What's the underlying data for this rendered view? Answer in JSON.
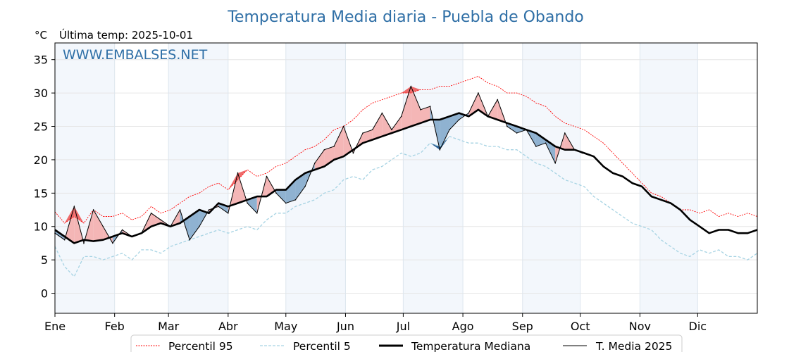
{
  "chart_data": {
    "type": "line",
    "title": "Temperatura Media diaria - Puebla de Obando",
    "unit_label": "°C",
    "subtitle": "Última temp: 2025-10-01",
    "watermark": "WWW.EMBALSES.NET",
    "ylim": [
      -3,
      37.5
    ],
    "yticks": [
      0,
      5,
      10,
      15,
      20,
      25,
      30,
      35
    ],
    "xlim_day": [
      0,
      365
    ],
    "month_ticks": [
      {
        "label": "Ene",
        "day": 0
      },
      {
        "label": "Feb",
        "day": 31
      },
      {
        "label": "Mar",
        "day": 59
      },
      {
        "label": "Abr",
        "day": 90
      },
      {
        "label": "May",
        "day": 120
      },
      {
        "label": "Jun",
        "day": 151
      },
      {
        "label": "Jul",
        "day": 181
      },
      {
        "label": "Ago",
        "day": 212
      },
      {
        "label": "Sep",
        "day": 243
      },
      {
        "label": "Oct",
        "day": 273
      },
      {
        "label": "Nov",
        "day": 304
      },
      {
        "label": "Dic",
        "day": 334
      }
    ],
    "grid": true,
    "legend_position": "bottom-center",
    "legend": [
      {
        "label": "Percentil 95",
        "color": "#ff0000",
        "style": "dotted"
      },
      {
        "label": "Percentil 5",
        "color": "#a6d3e3",
        "style": "dashed"
      },
      {
        "label": "Temperatura Mediana",
        "color": "#000000",
        "style": "thick"
      },
      {
        "label": "T. Media 2025",
        "color": "#000000",
        "style": "thin"
      }
    ],
    "colors": {
      "above_fill": "#f4b6b6",
      "above_p95_fill": "#ee6a6a",
      "below_fill": "#8fb2d1",
      "below_p5_fill": "#2a5e92",
      "band_shade": "#f3f7fc"
    },
    "x_days": [
      0,
      5,
      10,
      15,
      20,
      25,
      30,
      35,
      40,
      45,
      50,
      55,
      60,
      65,
      70,
      75,
      80,
      85,
      90,
      95,
      100,
      105,
      110,
      115,
      120,
      125,
      130,
      135,
      140,
      145,
      150,
      155,
      160,
      165,
      170,
      175,
      180,
      185,
      190,
      195,
      200,
      205,
      210,
      215,
      220,
      225,
      230,
      235,
      240,
      245,
      250,
      255,
      260,
      265,
      270,
      275,
      280,
      285,
      290,
      295,
      300,
      305,
      310,
      315,
      320,
      325,
      330,
      335,
      340,
      345,
      350,
      355,
      360,
      365
    ],
    "series": [
      {
        "name": "Percentil 95",
        "values": [
          12.2,
          10.5,
          11.5,
          10.5,
          12.5,
          11.5,
          11.5,
          12.0,
          11.0,
          11.5,
          13.0,
          12.0,
          12.5,
          13.5,
          14.5,
          15.0,
          16.0,
          16.5,
          15.5,
          17.0,
          18.5,
          17.5,
          18.0,
          19.0,
          19.5,
          20.5,
          21.5,
          22.0,
          23.0,
          24.5,
          25.0,
          26.0,
          27.5,
          28.5,
          29.0,
          29.5,
          30.0,
          30.0,
          30.5,
          30.5,
          31.0,
          31.0,
          31.5,
          32.0,
          32.5,
          31.5,
          31.0,
          30.0,
          30.0,
          29.5,
          28.5,
          28.0,
          26.5,
          25.5,
          25.0,
          24.5,
          23.5,
          22.5,
          21.0,
          19.5,
          18.0,
          16.5,
          15.0,
          14.5,
          13.5,
          12.5,
          12.5,
          12.0,
          12.5,
          11.5,
          12.0,
          11.5,
          12.0,
          11.5
        ]
      },
      {
        "name": "Percentil 5",
        "values": [
          7.0,
          4.0,
          2.5,
          5.5,
          5.5,
          5.0,
          5.5,
          6.0,
          5.0,
          6.5,
          6.5,
          6.0,
          7.0,
          7.5,
          8.0,
          8.5,
          9.0,
          9.5,
          9.0,
          9.5,
          10.0,
          9.5,
          11.0,
          12.0,
          12.0,
          13.0,
          13.5,
          14.0,
          15.0,
          15.5,
          17.0,
          17.5,
          17.0,
          18.5,
          19.0,
          20.0,
          21.0,
          20.5,
          21.0,
          22.5,
          22.0,
          23.5,
          23.0,
          22.5,
          22.5,
          22.0,
          22.0,
          21.5,
          21.5,
          20.5,
          19.5,
          19.0,
          18.0,
          17.0,
          16.5,
          16.0,
          14.5,
          13.5,
          12.5,
          11.5,
          10.5,
          10.0,
          9.5,
          8.0,
          7.0,
          6.0,
          5.5,
          6.5,
          6.0,
          6.5,
          5.5,
          5.5,
          5.0,
          6.0
        ]
      },
      {
        "name": "Temperatura Mediana",
        "values": [
          9.5,
          8.5,
          7.5,
          8.0,
          7.8,
          8.0,
          8.5,
          9.0,
          8.5,
          9.0,
          10.0,
          10.5,
          10.0,
          10.5,
          11.5,
          12.5,
          12.0,
          13.5,
          13.0,
          13.5,
          14.0,
          14.5,
          14.5,
          15.5,
          15.5,
          17.0,
          18.0,
          18.5,
          19.0,
          20.0,
          20.5,
          21.5,
          22.5,
          23.0,
          23.5,
          24.0,
          24.5,
          25.0,
          25.5,
          26.0,
          26.0,
          26.5,
          27.0,
          26.5,
          27.5,
          26.5,
          26.0,
          25.5,
          25.0,
          24.5,
          24.0,
          23.0,
          22.0,
          21.5,
          21.5,
          21.0,
          20.5,
          19.0,
          18.0,
          17.5,
          16.5,
          16.0,
          14.5,
          14.0,
          13.5,
          12.5,
          11.0,
          10.0,
          9.0,
          9.5,
          9.5,
          9.0,
          9.0,
          9.5
        ]
      },
      {
        "name": "T. Media 2025",
        "values": [
          9.0,
          8.0,
          13.0,
          7.5,
          12.5,
          10.0,
          7.5,
          9.5,
          8.5,
          9.0,
          12.0,
          11.0,
          10.0,
          12.5,
          8.0,
          10.0,
          12.5,
          13.0,
          12.0,
          18.0,
          13.5,
          12.0,
          17.5,
          15.0,
          13.5,
          14.0,
          16.0,
          19.5,
          21.5,
          22.0,
          25.0,
          21.0,
          24.0,
          24.5,
          27.0,
          24.5,
          26.5,
          31.0,
          27.5,
          28.0,
          21.5,
          24.5,
          26.0,
          27.0,
          30.0,
          26.5,
          29.0,
          25.0,
          24.0,
          24.5,
          22.0,
          22.5,
          19.5,
          24.0,
          21.5,
          21.0
        ]
      }
    ],
    "series_2025_x_days": [
      0,
      5,
      10,
      15,
      20,
      25,
      30,
      35,
      40,
      45,
      50,
      55,
      60,
      65,
      70,
      75,
      80,
      85,
      90,
      95,
      100,
      105,
      110,
      115,
      120,
      125,
      130,
      135,
      140,
      145,
      150,
      155,
      160,
      165,
      170,
      175,
      180,
      185,
      190,
      195,
      200,
      205,
      210,
      215,
      220,
      225,
      230,
      235,
      240,
      245,
      250,
      255,
      260,
      265,
      270,
      274
    ]
  }
}
